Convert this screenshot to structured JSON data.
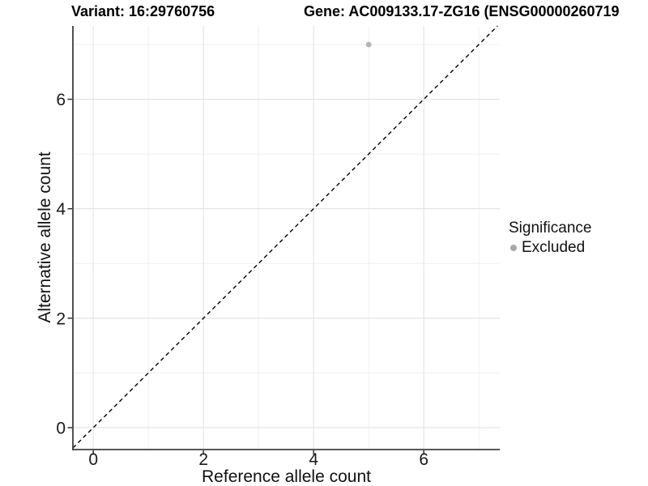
{
  "header": {
    "variant_title": "Variant: 16:29760756",
    "gene_title": "Gene: AC009133.17-ZG16 (ENSG00000260719"
  },
  "chart_data": {
    "type": "scatter",
    "title_left": "Variant: 16:29760756",
    "title_right": "Gene: AC009133.17-ZG16 (ENSG00000260719",
    "xlabel": "Reference allele count",
    "ylabel": "Alternative allele count",
    "xlim": [
      -0.37,
      7.38
    ],
    "ylim": [
      -0.4,
      7.34
    ],
    "x_ticks_major": [
      0,
      2,
      4,
      6
    ],
    "x_ticks_minor": [
      1,
      3,
      5,
      7
    ],
    "y_ticks_major": [
      0,
      2,
      4,
      6
    ],
    "y_ticks_minor": [
      1,
      3,
      5,
      7
    ],
    "grid": "on",
    "points": [
      {
        "x": 5,
        "y": 7,
        "series": "Excluded"
      }
    ],
    "reference_line": {
      "kind": "identity",
      "slope": 1,
      "intercept": 0,
      "style": "dashed"
    },
    "legend": {
      "position": "right",
      "title": "Significance",
      "items": [
        {
          "label": "Excluded",
          "color": "#a8a8a8",
          "marker": "circle"
        }
      ]
    },
    "colors": {
      "point": "#b3b3b3",
      "grid_major": "#e3e3e3",
      "grid_minor": "#f0f0f0",
      "axis_line": "#3f3f3f",
      "tick_mark": "#333333",
      "tick_label": "#1a1a1a",
      "reference_line": "#000000",
      "background": "#ffffff"
    }
  }
}
